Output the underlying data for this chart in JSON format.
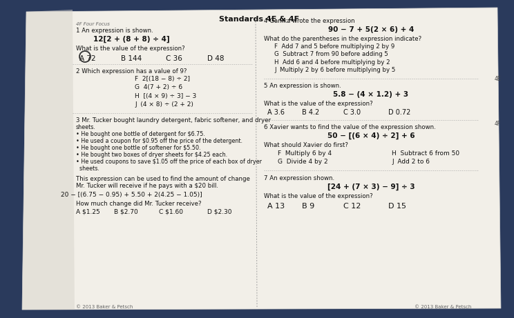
{
  "bg_color": "#2a3a5c",
  "paper_color": "#e8e4dc",
  "paper_color2": "#f2efe8",
  "title": "Standards 4E & 4F",
  "header_left": "4F Four Focus",
  "q1_label": "1 An expression is shown.",
  "q1_expr": "12[2 + (8 + 8) ÷ 4]",
  "q1_question": "What is the value of the expression?",
  "q1_answers": [
    "A 72",
    "B 144",
    "C 36",
    "D 48"
  ],
  "q1_correct": 0,
  "q2_label": "2 Which expression has a value of 9?",
  "q2_answers": [
    "F  2[(18 − 8) ÷ 2]",
    "G  4(7 + 2) ÷ 6",
    "H  [(4 × 9) ÷ 3] − 3",
    "J  (4 × 8) ÷ (2 + 2)"
  ],
  "q3_label": "3 Mr. Tucker bought laundry detergent, fabric softener, and dryer",
  "q3_details": [
    "sheets.",
    "• He bought one bottle of detergent for $6.75.",
    "• He used a coupon for $0.95 off the price of the detergent.",
    "• He bought one bottle of softener for $5.50.",
    "• He bought two boxes of dryer sheets for $4.25 each.",
    "• He used coupons to save $1.05 off the price of each box of dryer",
    "  sheets."
  ],
  "q3_desc1": "This expression can be used to find the amount of change",
  "q3_desc2": "Mr. Tucker will receive if he pays with a $20 bill.",
  "q3_expr": "20 − [(6.75 − 0.95) + 5.50 + 2(4.25 − 1.05)]",
  "q3_question": "How much change did Mr. Tucker receive?",
  "q3_answers": [
    "A $1.25",
    "B $2.70",
    "C $1.60",
    "D $2.30"
  ],
  "q4_label": "4 Ganika wrote the expression",
  "q4_expr": "90 − 7 + 5(2 × 6) + 4",
  "q4_question": "What do the parentheses in the expression indicate?",
  "q4_answers": [
    "F  Add 7 and 5 before multiplying 2 by 9",
    "G  Subtract 7 from 90 before adding 5",
    "H  Add 6 and 4 before multiplying by 2",
    "J  Multiply 2 by 6 before multiplying by 5"
  ],
  "q5_label": "5 An expression is shown.",
  "q5_expr": "5.8 − (4 × 1.2) + 3",
  "q5_question": "What is the value of the expression?",
  "q5_answers": [
    "A 3.6",
    "B 4.2",
    "C 3.0",
    "D 0.72"
  ],
  "q6_label": "6 Xavier wants to find the value of the expression shown.",
  "q6_expr": "50 − [(6 × 4) ÷ 2] + 6",
  "q6_question": "What should Xavier do first?",
  "q6_answers_left": [
    "F  Multiply 6 by 4",
    "G  Divide 4 by 2"
  ],
  "q6_answers_right": [
    "H  Subtract 6 from 50",
    "J  Add 2 to 6"
  ],
  "q7_label": "7 An expression shown.",
  "q7_expr": "[24 + (7 × 3) − 9] ÷ 3",
  "q7_question": "What is the value of the expression?",
  "q7_answers": [
    "A 13",
    "B 9",
    "C 12",
    "D 15"
  ],
  "footer": "© 2013 Baker & Petsch",
  "label_4e": "4E",
  "label_4f": "4F"
}
